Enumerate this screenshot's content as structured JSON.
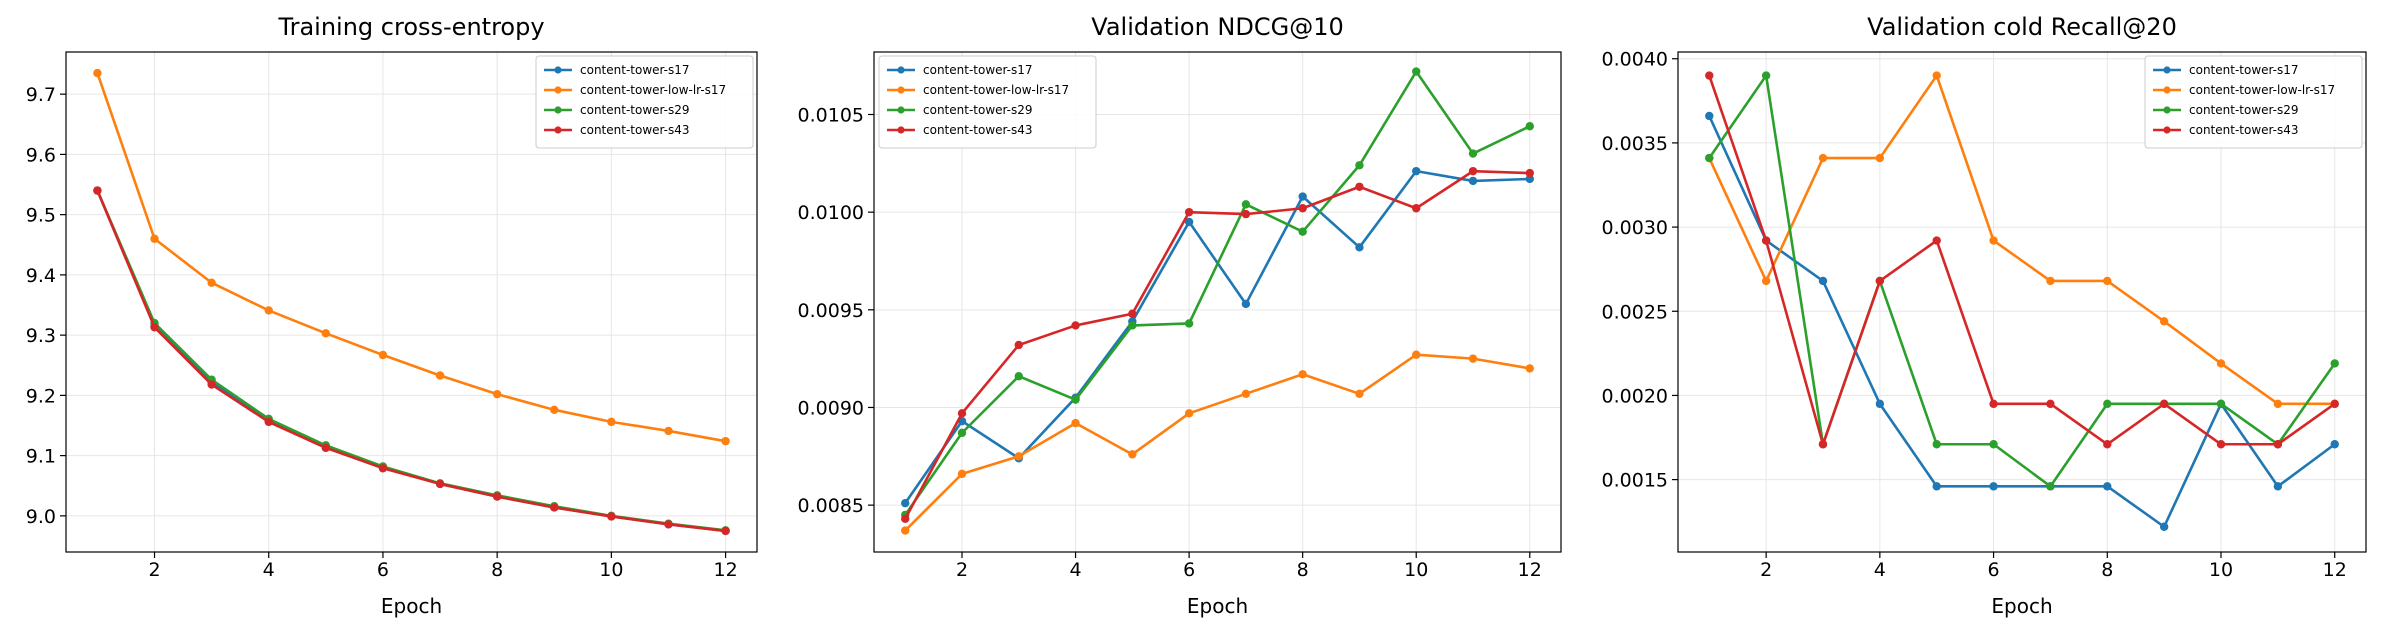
{
  "series_names": [
    "content-tower-s17",
    "content-tower-low-lr-s17",
    "content-tower-s29",
    "content-tower-s43"
  ],
  "series_colors": [
    "#1f77b4",
    "#ff7f0e",
    "#2ca02c",
    "#d62728"
  ],
  "chart_data": [
    {
      "type": "line",
      "title": "Training cross-entropy",
      "xlabel": "Epoch",
      "ylabel": "",
      "x": [
        1,
        2,
        3,
        4,
        5,
        6,
        7,
        8,
        9,
        10,
        11,
        12
      ],
      "xlim": [
        0.45,
        12.55
      ],
      "ylim": [
        8.94,
        9.77
      ],
      "xticks": [
        2,
        4,
        6,
        8,
        10,
        12
      ],
      "xtick_labels": [
        "2",
        "4",
        "6",
        "8",
        "10",
        "12"
      ],
      "yticks": [
        9.0,
        9.1,
        9.2,
        9.3,
        9.4,
        9.5,
        9.6,
        9.7
      ],
      "ytick_labels": [
        "9.0",
        "9.1",
        "9.2",
        "9.3",
        "9.4",
        "9.5",
        "9.6",
        "9.7"
      ],
      "grid": true,
      "legend": "upper right",
      "series": [
        {
          "name": "content-tower-s17",
          "values": [
            9.54,
            9.315,
            9.222,
            9.157,
            9.113,
            9.08,
            9.053,
            9.032,
            9.014,
            8.999,
            8.986,
            8.975
          ]
        },
        {
          "name": "content-tower-low-lr-s17",
          "values": [
            9.735,
            9.46,
            9.387,
            9.341,
            9.303,
            9.267,
            9.233,
            9.202,
            9.176,
            9.156,
            9.141,
            9.124
          ]
        },
        {
          "name": "content-tower-s29",
          "values": [
            9.54,
            9.32,
            9.226,
            9.161,
            9.117,
            9.082,
            9.054,
            9.034,
            9.016,
            9.0,
            8.987,
            8.976
          ]
        },
        {
          "name": "content-tower-s43",
          "values": [
            9.54,
            9.313,
            9.218,
            9.156,
            9.113,
            9.079,
            9.053,
            9.032,
            9.014,
            8.999,
            8.986,
            8.975
          ]
        }
      ]
    },
    {
      "type": "line",
      "title": "Validation NDCG@10",
      "xlabel": "Epoch",
      "ylabel": "",
      "x": [
        1,
        2,
        3,
        4,
        5,
        6,
        7,
        8,
        9,
        10,
        11,
        12
      ],
      "xlim": [
        0.45,
        12.55
      ],
      "ylim": [
        0.00826,
        0.01082
      ],
      "xticks": [
        2,
        4,
        6,
        8,
        10,
        12
      ],
      "xtick_labels": [
        "2",
        "4",
        "6",
        "8",
        "10",
        "12"
      ],
      "yticks": [
        0.0085,
        0.009,
        0.0095,
        0.01,
        0.0105
      ],
      "ytick_labels": [
        "0.0085",
        "0.0090",
        "0.0095",
        "0.0100",
        "0.0105"
      ],
      "grid": true,
      "legend": "upper left",
      "series": [
        {
          "name": "content-tower-s17",
          "values": [
            0.00851,
            0.00893,
            0.00874,
            0.00905,
            0.00944,
            0.00995,
            0.00953,
            0.01008,
            0.00982,
            0.01021,
            0.01016,
            0.01017
          ]
        },
        {
          "name": "content-tower-low-lr-s17",
          "values": [
            0.00837,
            0.00866,
            0.00875,
            0.00892,
            0.00876,
            0.00897,
            0.00907,
            0.00917,
            0.00907,
            0.00927,
            0.00925,
            0.0092
          ]
        },
        {
          "name": "content-tower-s29",
          "values": [
            0.00845,
            0.00887,
            0.00916,
            0.00904,
            0.00942,
            0.00943,
            0.01004,
            0.0099,
            0.01024,
            0.01072,
            0.0103,
            0.01044
          ]
        },
        {
          "name": "content-tower-s43",
          "values": [
            0.00843,
            0.00897,
            0.00932,
            0.00942,
            0.00948,
            0.01,
            0.00999,
            0.01002,
            0.01013,
            0.01002,
            0.01021,
            0.0102
          ]
        }
      ]
    },
    {
      "type": "line",
      "title": "Validation cold Recall@20",
      "xlabel": "Epoch",
      "ylabel": "",
      "x": [
        1,
        2,
        3,
        4,
        5,
        6,
        7,
        8,
        9,
        10,
        11,
        12
      ],
      "xlim": [
        0.45,
        12.55
      ],
      "ylim": [
        0.00107,
        0.00404
      ],
      "xticks": [
        2,
        4,
        6,
        8,
        10,
        12
      ],
      "xtick_labels": [
        "2",
        "4",
        "6",
        "8",
        "10",
        "12"
      ],
      "yticks": [
        0.0015,
        0.002,
        0.0025,
        0.003,
        0.0035,
        0.004
      ],
      "ytick_labels": [
        "0.0015",
        "0.0020",
        "0.0025",
        "0.0030",
        "0.0035",
        "0.0040"
      ],
      "grid": true,
      "legend": "upper right",
      "series": [
        {
          "name": "content-tower-s17",
          "values": [
            0.00366,
            0.00292,
            0.00268,
            0.00195,
            0.00146,
            0.00146,
            0.00146,
            0.00146,
            0.00122,
            0.00195,
            0.00146,
            0.00171
          ]
        },
        {
          "name": "content-tower-low-lr-s17",
          "values": [
            0.00341,
            0.00268,
            0.00341,
            0.00341,
            0.0039,
            0.00292,
            0.00268,
            0.00268,
            0.00244,
            0.00219,
            0.00195,
            0.00195
          ]
        },
        {
          "name": "content-tower-s29",
          "values": [
            0.00341,
            0.0039,
            0.00171,
            0.00268,
            0.00171,
            0.00171,
            0.00146,
            0.00195,
            0.00195,
            0.00195,
            0.00171,
            0.00219
          ]
        },
        {
          "name": "content-tower-s43",
          "values": [
            0.0039,
            0.00292,
            0.00171,
            0.00268,
            0.00292,
            0.00195,
            0.00195,
            0.00171,
            0.00195,
            0.00171,
            0.00171,
            0.00195
          ]
        }
      ]
    }
  ]
}
